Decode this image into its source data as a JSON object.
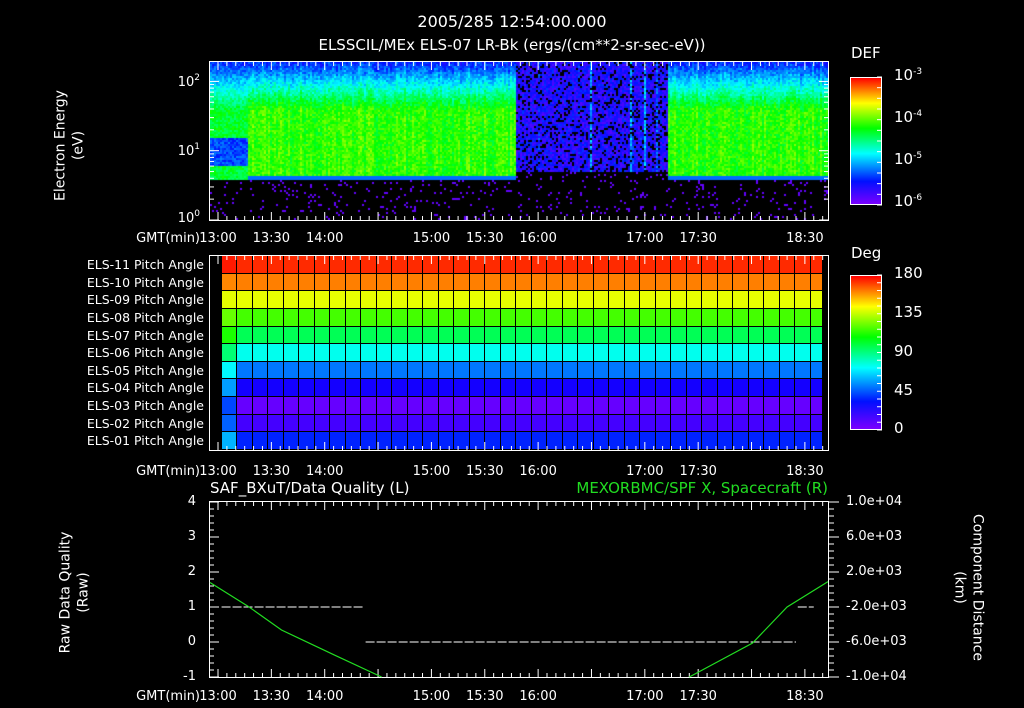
{
  "header": {
    "title": "2005/285 12:54:00.000",
    "subtitle": "ELSSCIL/MEx ELS-07 LR-Bk  (ergs/(cm**2-sr-sec-eV))"
  },
  "time_axis": {
    "label": "GMT(min)",
    "ticks": [
      "13:00",
      "13:30",
      "14:00",
      "15:00",
      "15:30",
      "16:00",
      "17:00",
      "17:30",
      "18:30"
    ],
    "tick_minutes": [
      780,
      810,
      840,
      900,
      930,
      960,
      1020,
      1050,
      1110
    ],
    "range_minutes": [
      775.5,
      1123
    ]
  },
  "chart_data": [
    {
      "type": "heatmap",
      "title": "ELSSCIL/MEx ELS-07 LR-Bk  (ergs/(cm**2-sr-sec-eV))",
      "ylabel_line1": "Electron Energy",
      "ylabel_line2": "(eV)",
      "yscale": "log",
      "ylim_log10": [
        0,
        2.28
      ],
      "yticks": [
        {
          "base": "10",
          "exp": "2"
        },
        {
          "base": "10",
          "exp": "1"
        },
        {
          "base": "10",
          "exp": "0"
        }
      ],
      "colorbar": {
        "label": "DEF",
        "range_log10": [
          -6,
          -3
        ],
        "ticks": [
          {
            "base": "10",
            "exp": "-3"
          },
          {
            "base": "10",
            "exp": "-4"
          },
          {
            "base": "10",
            "exp": "-5"
          },
          {
            "base": "10",
            "exp": "-6"
          }
        ]
      },
      "regimes": [
        {
          "start": 775.5,
          "end": 796,
          "type": "split",
          "low_cutoff_log10_eV": 0.6
        },
        {
          "start": 796,
          "end": 947,
          "type": "dense",
          "low_cutoff_log10_eV": 0.6
        },
        {
          "start": 947,
          "end": 1032,
          "type": "sparse",
          "low_cutoff_log10_eV": 0.7
        },
        {
          "start": 1032,
          "end": 1123,
          "type": "dense",
          "low_cutoff_log10_eV": 0.6
        }
      ]
    },
    {
      "type": "heatmap",
      "title": "Pitch Angle",
      "rows": [
        {
          "label": "ELS-11 Pitch Angle",
          "deg": 172,
          "color": "#ff2a00"
        },
        {
          "label": "ELS-10 Pitch Angle",
          "deg": 155,
          "color": "#ff7f00"
        },
        {
          "label": "ELS-09 Pitch Angle",
          "deg": 132,
          "color": "#e8ff00"
        },
        {
          "label": "ELS-08 Pitch Angle",
          "deg": 112,
          "color": "#44ff00"
        },
        {
          "label": "ELS-07 Pitch Angle",
          "deg": 100,
          "color": "#00ff55"
        },
        {
          "label": "ELS-06 Pitch Angle",
          "deg": 78,
          "color": "#00ffee"
        },
        {
          "label": "ELS-05 Pitch Angle",
          "deg": 55,
          "color": "#0077ff"
        },
        {
          "label": "ELS-04 Pitch Angle",
          "deg": 38,
          "color": "#1400ff"
        },
        {
          "label": "ELS-03 Pitch Angle",
          "deg": 22,
          "color": "#6600ff"
        },
        {
          "label": "ELS-02 Pitch Angle",
          "deg": 27,
          "color": "#4400ff"
        },
        {
          "label": "ELS-01 Pitch Angle",
          "deg": 42,
          "color": "#0022ff"
        }
      ],
      "data_start_minutes": 782,
      "data_end_minutes": 1120,
      "colorbar": {
        "label": "Deg",
        "range": [
          0,
          180
        ],
        "ticks": [
          "180",
          "135",
          "90",
          "45",
          "0"
        ]
      }
    },
    {
      "type": "line",
      "title_left": "SAF_BXuT/Data Quality (L)",
      "title_right": "MEXORBMC/SPF X, Spacecraft (R)",
      "ylabel_left_line1": "Raw Data Quality",
      "ylabel_left_line2": "(Raw)",
      "ylabel_right_line1": "Component Distance",
      "ylabel_right_line2": "(km)",
      "ylim_left": [
        -1,
        4
      ],
      "yticks_left": [
        "4",
        "3",
        "2",
        "1",
        "0",
        "-1"
      ],
      "ylim_right": [
        -10000,
        10000
      ],
      "yticks_right": [
        "1.0e+04",
        "6.0e+03",
        "2.0e+03",
        "-2.0e+03",
        "-6.0e+03",
        "-1.0e+04"
      ],
      "series": [
        {
          "name": "Data Quality",
          "axis": "left",
          "color": "#ffffff",
          "segments": [
            {
              "start": 782,
              "end": 862,
              "value": 1
            },
            {
              "start": 863,
              "end": 1105,
              "value": 0
            },
            {
              "start": 1106,
              "end": 1115,
              "value": 1
            }
          ]
        },
        {
          "name": "SPF X, Spacecraft",
          "axis": "right",
          "color": "#22dd22",
          "points_left": [
            [
              775.5,
              800
            ],
            [
              797.5,
              -2000
            ],
            [
              815.7,
              -4630
            ],
            [
              845.5,
              -7490
            ],
            [
              872,
              -10000
            ]
          ],
          "points_right": [
            [
              1045,
              -10000
            ],
            [
              1080.6,
              -6114
            ],
            [
              1100,
              -2000
            ],
            [
              1123,
              900
            ]
          ]
        }
      ]
    }
  ]
}
